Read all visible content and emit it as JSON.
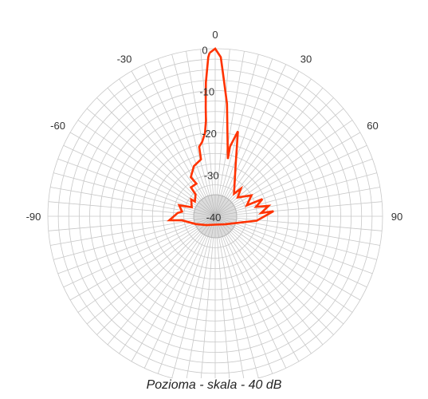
{
  "caption": "Pozioma - skala - 40 dB",
  "chart_data": {
    "type": "polar-line",
    "title": "",
    "angle_unit": "degrees",
    "angle_ticks": [
      {
        "angle": 0,
        "label": "0"
      },
      {
        "angle": 30,
        "label": "30"
      },
      {
        "angle": -30,
        "label": "-30"
      },
      {
        "angle": 60,
        "label": "60"
      },
      {
        "angle": -60,
        "label": "-60"
      },
      {
        "angle": 90,
        "label": "90"
      },
      {
        "angle": -90,
        "label": "-90"
      }
    ],
    "radial_unit": "dB",
    "radial_range": [
      -40,
      0
    ],
    "radial_ticks": [
      {
        "value": 0,
        "label": "0"
      },
      {
        "value": -10,
        "label": "-10"
      },
      {
        "value": -20,
        "label": "-20"
      },
      {
        "value": -30,
        "label": "-30"
      },
      {
        "value": -40,
        "label": "-40"
      }
    ],
    "grid": true,
    "angular_grid_step_deg": 5,
    "radial_grid_step_db": 2.5,
    "colors": {
      "series": "#ff3300",
      "grid": "#c8c8c8",
      "center": "#b4b4b4"
    },
    "series": [
      {
        "color": "#ff3300",
        "points": [
          {
            "angle": -2,
            "db": -1
          },
          {
            "angle": -2.5,
            "db": -2
          },
          {
            "angle": -4,
            "db": -8
          },
          {
            "angle": -5,
            "db": -14
          },
          {
            "angle": -5.5,
            "db": -17
          },
          {
            "angle": -7,
            "db": -20
          },
          {
            "angle": -10,
            "db": -22
          },
          {
            "angle": -13,
            "db": -23
          },
          {
            "angle": -14,
            "db": -26
          },
          {
            "angle": -23,
            "db": -27
          },
          {
            "angle": -32,
            "db": -29
          },
          {
            "angle": -30,
            "db": -31
          },
          {
            "angle": -40,
            "db": -31
          },
          {
            "angle": -42,
            "db": -33
          },
          {
            "angle": -54,
            "db": -34
          },
          {
            "angle": -55,
            "db": -33
          },
          {
            "angle": -69,
            "db": -34
          },
          {
            "angle": -73,
            "db": -31
          },
          {
            "angle": -82,
            "db": -32
          },
          {
            "angle": -85,
            "db": -31
          },
          {
            "angle": -95,
            "db": -29
          },
          {
            "angle": -97,
            "db": -32
          },
          {
            "angle": -112,
            "db": -35
          },
          {
            "angle": -135,
            "db": -37
          },
          {
            "angle": 180,
            "db": -38
          },
          {
            "angle": 130,
            "db": -37
          },
          {
            "angle": 96,
            "db": -30
          },
          {
            "angle": 85,
            "db": -26
          },
          {
            "angle": 86,
            "db": -29
          },
          {
            "angle": 79,
            "db": -27
          },
          {
            "angle": 77,
            "db": -30
          },
          {
            "angle": 70,
            "db": -28
          },
          {
            "angle": 71,
            "db": -32
          },
          {
            "angle": 60,
            "db": -30
          },
          {
            "angle": 50,
            "db": -33
          },
          {
            "angle": 43,
            "db": -31
          },
          {
            "angle": 40,
            "db": -33
          },
          {
            "angle": 22,
            "db": -27
          },
          {
            "angle": 15,
            "db": -19
          },
          {
            "angle": 12,
            "db": -23
          },
          {
            "angle": 12.5,
            "db": -26
          },
          {
            "angle": 6,
            "db": -13
          },
          {
            "angle": 3.5,
            "db": -7
          },
          {
            "angle": 2,
            "db": -2
          },
          {
            "angle": 0,
            "db": 0
          },
          {
            "angle": -2,
            "db": -1
          }
        ]
      }
    ]
  }
}
